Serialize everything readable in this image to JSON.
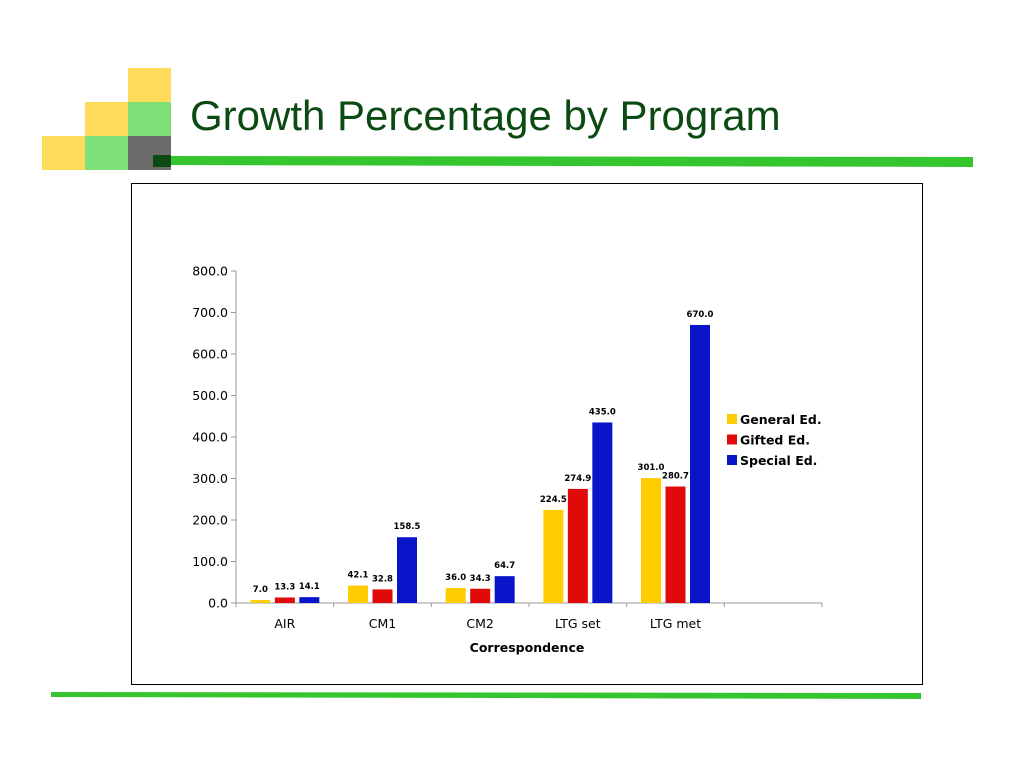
{
  "slide": {
    "title": "Growth Percentage by Program",
    "colors": {
      "title": "#0b4a12",
      "accent_green": "#35c52f",
      "yellow_square": "#ffdb5c",
      "green_square": "#7fe07a",
      "gray_square": "#6b6b6b"
    }
  },
  "chart_data": {
    "type": "bar",
    "title": "",
    "xlabel": "Correspondence",
    "ylabel": "",
    "ylim": [
      0,
      800
    ],
    "yticks": [
      "0.0",
      "100.0",
      "200.0",
      "300.0",
      "400.0",
      "500.0",
      "600.0",
      "700.0",
      "800.0"
    ],
    "categories": [
      "AIR",
      "CM1",
      "CM2",
      "LTG set",
      "LTG met"
    ],
    "series": [
      {
        "name": "General Ed.",
        "color": "#ffcc00",
        "values": [
          7.0,
          42.1,
          36.0,
          224.5,
          301.0
        ],
        "labels": [
          "7.0",
          "42.1",
          "36.0",
          "224.5",
          "301.0"
        ]
      },
      {
        "name": "Gifted Ed.",
        "color": "#e00a0a",
        "values": [
          13.3,
          32.8,
          34.3,
          274.9,
          280.7
        ],
        "labels": [
          "13.3",
          "32.8",
          "34.3",
          "274.9",
          "280.7"
        ]
      },
      {
        "name": "Special Ed.",
        "color": "#0a14c8",
        "values": [
          14.1,
          158.5,
          64.7,
          435.0,
          670.0
        ],
        "labels": [
          "14.1",
          "158.5",
          "64.7",
          "435.0",
          "670.0"
        ]
      }
    ],
    "grid": false,
    "legend": "right"
  }
}
